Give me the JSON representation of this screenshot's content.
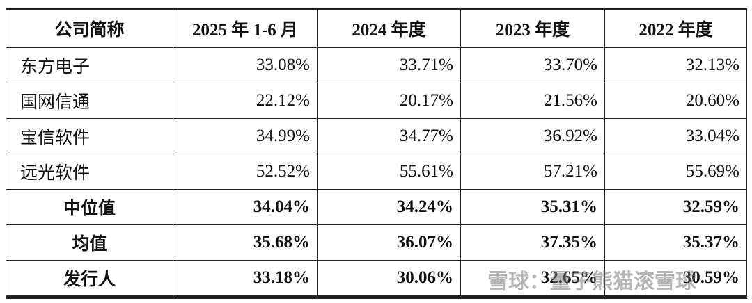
{
  "table": {
    "header": [
      "公司简称",
      "2025 年 1-6 月",
      "2024 年度",
      "2023 年度",
      "2022 年度"
    ],
    "rows": [
      [
        "东方电子",
        "33.08%",
        "33.71%",
        "33.70%",
        "32.13%"
      ],
      [
        "国网信通",
        "22.12%",
        "20.17%",
        "21.56%",
        "20.60%"
      ],
      [
        "宝信软件",
        "34.99%",
        "34.77%",
        "36.92%",
        "33.04%"
      ],
      [
        "远光软件",
        "52.52%",
        "55.61%",
        "57.21%",
        "55.69%"
      ],
      [
        "中位值",
        "34.04%",
        "34.24%",
        "35.31%",
        "32.59%"
      ],
      [
        "均值",
        "35.68%",
        "36.07%",
        "37.35%",
        "35.37%"
      ],
      [
        "发行人",
        "33.18%",
        "30.06%",
        "32.65%",
        "30.59%"
      ]
    ]
  },
  "watermark": "雪球：量子熊猫滚雪球"
}
